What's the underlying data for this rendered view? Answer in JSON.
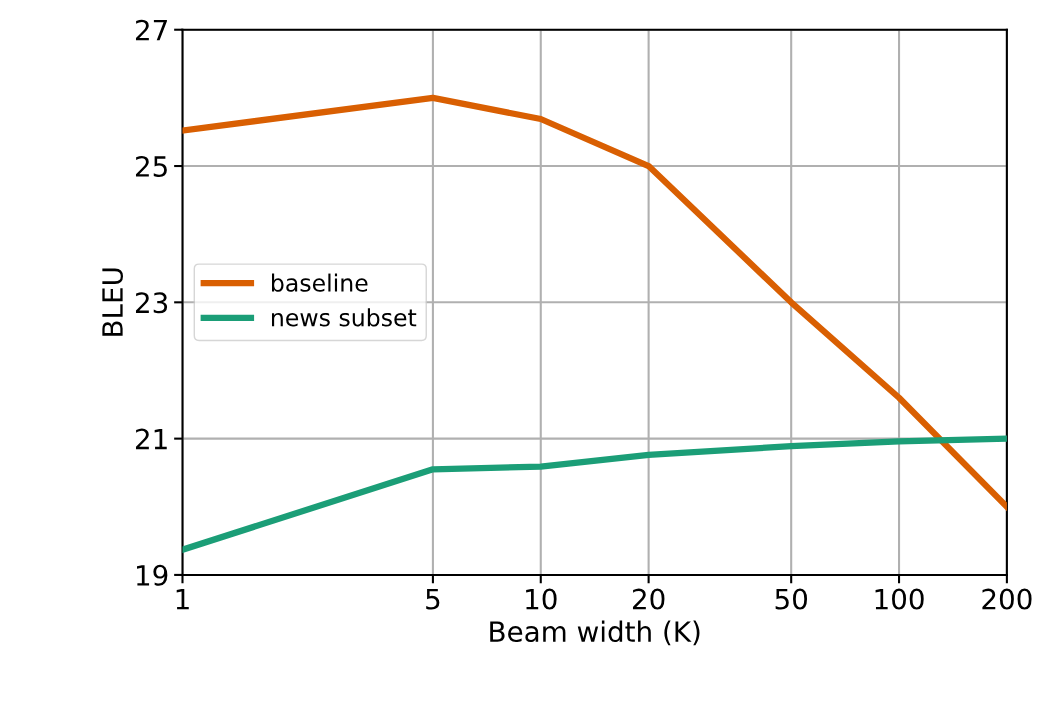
{
  "chart_data": {
    "type": "line",
    "xlabel": "Beam width (K)",
    "ylabel": "BLEU",
    "log": "x",
    "x": [
      1,
      5,
      10,
      20,
      50,
      100,
      200
    ],
    "series": [
      {
        "name": "baseline",
        "color": "#d95f02",
        "values": [
          25.52,
          26.0,
          25.69,
          25.0,
          23.0,
          21.6,
          20.0
        ]
      },
      {
        "name": "news subset",
        "color": "#1b9e77",
        "values": [
          19.37,
          20.55,
          20.59,
          20.76,
          20.89,
          20.96,
          21.0
        ]
      }
    ],
    "xlim": [
      1,
      200
    ],
    "xticks": [
      1,
      5,
      10,
      20,
      50,
      100,
      200
    ],
    "ylim": [
      19,
      27
    ],
    "yticks": [
      19,
      21,
      23,
      25,
      27
    ],
    "grid": true,
    "legend": "center left",
    "line_style": "solid",
    "marker": "none"
  }
}
